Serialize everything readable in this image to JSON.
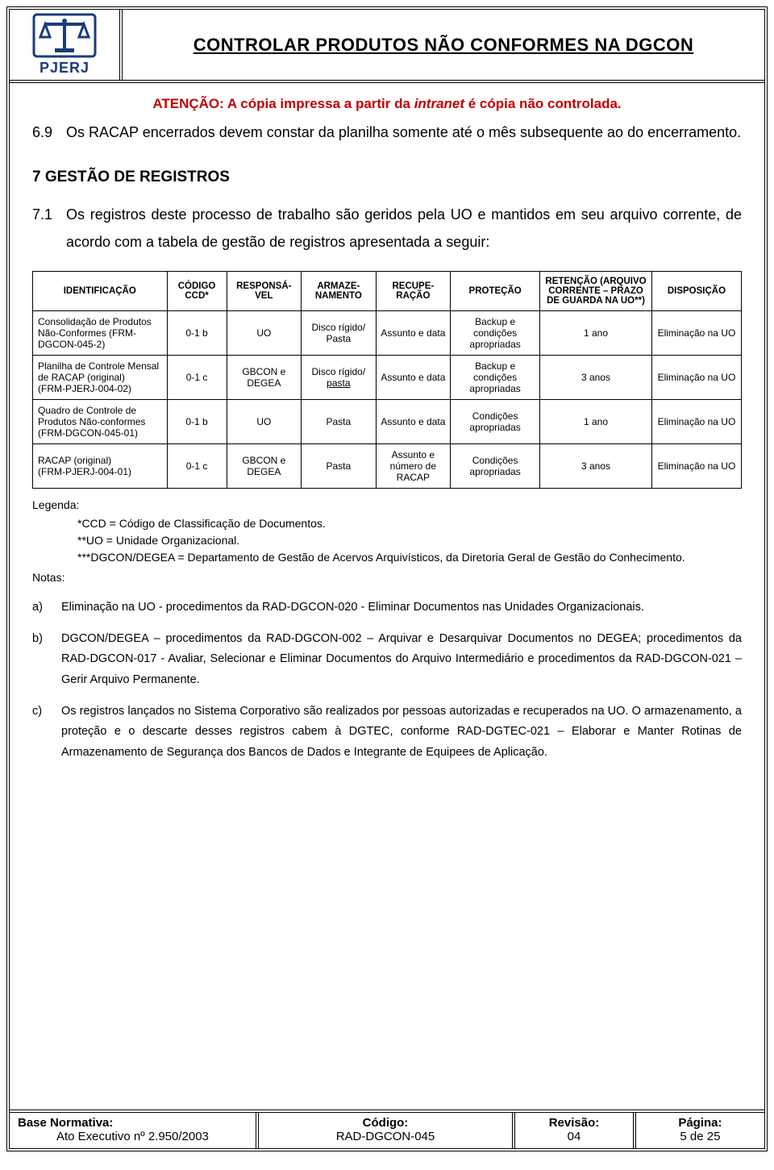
{
  "logo_text": "PJERJ",
  "doc_title": "CONTROLAR PRODUTOS NÃO CONFORMES NA DGCON",
  "warning_prefix": "ATENÇÃO: A cópia impressa a partir da ",
  "warning_italic": "intranet",
  "warning_suffix": " é cópia não controlada.",
  "p69_num": "6.9",
  "p69_text": "Os RACAP encerrados devem constar da planilha somente até o mês subsequente ao do encerramento.",
  "h7": "7   GESTÃO DE REGISTROS",
  "p71_num": "7.1",
  "p71_text": "Os registros deste processo de trabalho são geridos pela UO e mantidos em seu arquivo corrente, de acordo com a tabela de gestão de registros apresentada a seguir:",
  "table": {
    "headers": [
      "IDENTIFICAÇÃO",
      "CÓDIGO CCD*",
      "RESPONSÁ-VEL",
      "ARMAZE-NAMENTO",
      "RECUPE-RAÇÃO",
      "PROTEÇÃO",
      "RETENÇÃO (ARQUIVO CORRENTE – PRAZO DE GUARDA NA UO**)",
      "DISPOSIÇÃO"
    ],
    "rows": [
      {
        "ident": "Consolidação de Produtos Não-Conformes (FRM-DGCON-045-2)",
        "codigo": "0-1 b",
        "resp": "UO",
        "arm": "Disco rígido/ Pasta",
        "rec": "Assunto e data",
        "prot": "Backup e condições apropriadas",
        "ret": "1 ano",
        "disp": "Eliminação na UO"
      },
      {
        "ident": "Planilha de Controle Mensal de RACAP (original)\n(FRM-PJERJ-004-02)",
        "codigo": "0-1 c",
        "resp": "GBCON e DEGEA",
        "arm": "Disco rígido/ pasta",
        "arm_ul": true,
        "rec": "Assunto e data",
        "prot": "Backup e condições apropriadas",
        "ret": "3 anos",
        "disp": "Eliminação na UO"
      },
      {
        "ident": "Quadro de Controle de Produtos Não-conformes (FRM-DGCON-045-01)",
        "codigo": "0-1 b",
        "resp": "UO",
        "arm": "Pasta",
        "rec": "Assunto e data",
        "prot": "Condições apropriadas",
        "ret": "1 ano",
        "disp": "Eliminação na UO"
      },
      {
        "ident": "RACAP (original)\n(FRM-PJERJ-004-01)",
        "codigo": "0-1 c",
        "resp": "GBCON e DEGEA",
        "arm": "Pasta",
        "rec": "Assunto e número de RACAP",
        "prot": "Condições apropriadas",
        "ret": "3 anos",
        "disp": "Eliminação na UO"
      }
    ]
  },
  "legend_label": "Legenda:",
  "legend_l1": "*CCD = Código de Classificação de Documentos.",
  "legend_l2": "**UO = Unidade Organizacional.",
  "legend_l3": "***DGCON/DEGEA = Departamento de Gestão de Acervos Arquivísticos, da Diretoria Geral de Gestão do Conhecimento.",
  "notes_label": "Notas:",
  "notes": [
    {
      "k": "a)",
      "v": "Eliminação na UO - procedimentos da RAD-DGCON-020 - Eliminar Documentos nas Unidades Organizacionais."
    },
    {
      "k": "b)",
      "v": "DGCON/DEGEA – procedimentos da RAD-DGCON-002 – Arquivar e Desarquivar Documentos no DEGEA; procedimentos da RAD-DGCON-017 - Avaliar, Selecionar e Eliminar Documentos do Arquivo Intermediário e procedimentos da RAD-DGCON-021 – Gerir Arquivo Permanente."
    },
    {
      "k": "c)",
      "v": "Os registros lançados no Sistema Corporativo são realizados por pessoas autorizadas e recuperados na UO. O armazenamento, a proteção e o descarte desses registros cabem à DGTEC, conforme RAD-DGTEC-021 – Elaborar e Manter Rotinas de Armazenamento de Segurança dos Bancos de Dados e Integrante de Equipees de Aplicação."
    }
  ],
  "footer": {
    "base_h": "Base Normativa:",
    "base_v": "Ato Executivo nº 2.950/2003",
    "cod_h": "Código:",
    "cod_v": "RAD-DGCON-045",
    "rev_h": "Revisão:",
    "rev_v": "04",
    "pag_h": "Página:",
    "pag_v": "5 de 25"
  }
}
